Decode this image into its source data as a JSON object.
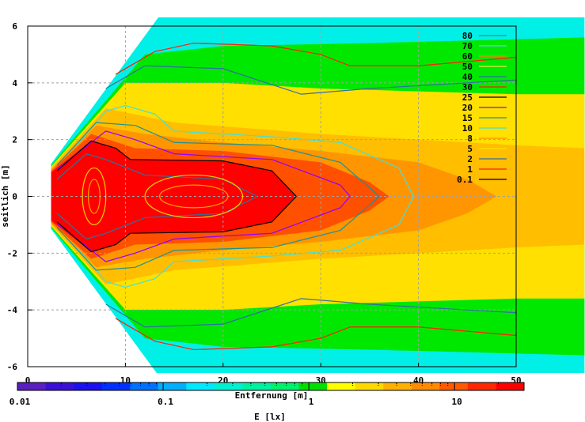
{
  "chart_data": {
    "type": "heatmap",
    "title": "",
    "xlabel": "Entfernung [m]",
    "ylabel": "seitlich [m]",
    "colorbar_label": "E [lx]",
    "xlim": [
      0,
      50
    ],
    "ylim": [
      -6,
      6
    ],
    "grid": true,
    "x_ticks": [
      "0",
      "10",
      "20",
      "30",
      "40",
      "50"
    ],
    "x_tick_values": [
      0,
      10,
      20,
      30,
      40,
      50
    ],
    "y_ticks": [
      "6",
      "4",
      "2",
      "0",
      "-2",
      "-4",
      "-6"
    ],
    "y_tick_values": [
      6,
      4,
      2,
      0,
      -2,
      -4,
      -6
    ],
    "colorbar": {
      "scale": "log",
      "range": [
        0.01,
        30
      ],
      "tick_labels": [
        "0.01",
        "0.1",
        "1",
        "10"
      ],
      "tick_values": [
        0.01,
        0.1,
        1,
        10
      ],
      "colors": [
        "#5a1fc0",
        "#3a10d8",
        "#1a10f0",
        "#0030ff",
        "#0070ff",
        "#00b0ff",
        "#00e8ff",
        "#00f0d0",
        "#00f0a0",
        "#00f070",
        "#00e000",
        "#ffff00",
        "#ffd800",
        "#ffb000",
        "#ff8c00",
        "#ff5a00",
        "#ff2800",
        "#ff0000"
      ]
    },
    "legend": {
      "placement": "top-right",
      "entries": [
        {
          "label": "80",
          "color": "#508080"
        },
        {
          "label": "70",
          "color": "#60d0d0"
        },
        {
          "label": "60",
          "color": "#ff8000"
        },
        {
          "label": "50",
          "color": "#f0e040"
        },
        {
          "label": "40",
          "color": "#3070a0"
        },
        {
          "label": "30",
          "color": "#ff2000"
        },
        {
          "label": "25",
          "color": "#000000"
        },
        {
          "label": "20",
          "color": "#9000ff"
        },
        {
          "label": "15",
          "color": "#209090"
        },
        {
          "label": "10",
          "color": "#40e0e0"
        },
        {
          "label": "8",
          "color": "#ff9000"
        },
        {
          "label": "5",
          "color": "#ffe000"
        },
        {
          "label": "2",
          "color": "#3070a0"
        },
        {
          "label": "1",
          "color": "#ff2000"
        },
        {
          "label": "0.1",
          "color": "#000000"
        }
      ]
    },
    "bands": [
      {
        "color": "#00f0e8",
        "profile": [
          [
            2.4,
            1.15
          ],
          [
            14,
            6.6
          ],
          [
            57,
            6.6
          ]
        ]
      },
      {
        "color": "#00e800",
        "profile": [
          [
            2.4,
            1.1
          ],
          [
            12,
            5.0
          ],
          [
            20,
            5.3
          ],
          [
            35,
            5.4
          ],
          [
            57,
            5.6
          ]
        ]
      },
      {
        "color": "#ffe000",
        "profile": [
          [
            2.4,
            1.05
          ],
          [
            10,
            4.0
          ],
          [
            20,
            4.0
          ],
          [
            30,
            3.8
          ],
          [
            40,
            3.7
          ],
          [
            50,
            3.6
          ],
          [
            57,
            3.6
          ]
        ]
      },
      {
        "color": "#ffbe00",
        "profile": [
          [
            2.4,
            1.0
          ],
          [
            8,
            3.1
          ],
          [
            15,
            2.6
          ],
          [
            30,
            2.2
          ],
          [
            50,
            1.8
          ],
          [
            57,
            1.7
          ]
        ]
      },
      {
        "color": "#ff9600",
        "profile": [
          [
            2.4,
            0.95
          ],
          [
            7,
            2.5
          ],
          [
            12,
            2.2
          ],
          [
            20,
            1.9
          ],
          [
            30,
            1.6
          ],
          [
            40,
            1.2
          ],
          [
            45,
            0.6
          ],
          [
            48,
            0
          ]
        ]
      },
      {
        "color": "#ff5000",
        "profile": [
          [
            2.4,
            0.9
          ],
          [
            6.5,
            2.2
          ],
          [
            11,
            1.7
          ],
          [
            20,
            1.6
          ],
          [
            30,
            1.2
          ],
          [
            35,
            0.5
          ],
          [
            37,
            0
          ]
        ]
      },
      {
        "color": "#ff0000",
        "profile": [
          [
            2.4,
            0.85
          ],
          [
            6.5,
            1.95
          ],
          [
            9,
            1.7
          ],
          [
            10.5,
            1.3
          ],
          [
            20,
            1.25
          ],
          [
            25,
            0.9
          ],
          [
            27.5,
            0
          ]
        ]
      }
    ],
    "contours": [
      {
        "level": "60",
        "color": "#ff2000",
        "profile": [
          [
            9,
            4.3
          ],
          [
            13,
            5.1
          ],
          [
            17,
            5.4
          ],
          [
            25,
            5.3
          ],
          [
            30,
            5.0
          ],
          [
            33,
            4.6
          ],
          [
            40,
            4.6
          ],
          [
            50,
            4.9
          ]
        ]
      },
      {
        "level": "40",
        "color": "#3070a0",
        "profile": [
          [
            8,
            3.8
          ],
          [
            12,
            4.6
          ],
          [
            20,
            4.5
          ],
          [
            28,
            3.6
          ],
          [
            35,
            3.8
          ],
          [
            45,
            4.0
          ],
          [
            50,
            4.1
          ]
        ]
      },
      {
        "level": "10",
        "color": "#40e0e0",
        "profile": [
          [
            5,
            1.8
          ],
          [
            8,
            3.0
          ],
          [
            10,
            3.2
          ],
          [
            13,
            2.9
          ],
          [
            15,
            2.3
          ],
          [
            25,
            2.1
          ],
          [
            32,
            1.9
          ],
          [
            38,
            1.0
          ],
          [
            39.5,
            0
          ]
        ]
      },
      {
        "level": "15",
        "color": "#209090",
        "profile": [
          [
            3,
            1.1
          ],
          [
            7,
            2.6
          ],
          [
            11,
            2.5
          ],
          [
            15,
            1.9
          ],
          [
            25,
            1.8
          ],
          [
            32,
            1.2
          ],
          [
            36,
            0
          ]
        ]
      },
      {
        "level": "20",
        "color": "#9000ff",
        "profile": [
          [
            3,
            0.95
          ],
          [
            8,
            2.3
          ],
          [
            11,
            2.0
          ],
          [
            15,
            1.5
          ],
          [
            25,
            1.3
          ],
          [
            32,
            0.4
          ],
          [
            33,
            0
          ]
        ]
      },
      {
        "level": "25",
        "color": "#000000",
        "profile": [
          [
            3,
            0.9
          ],
          [
            6.5,
            1.95
          ],
          [
            9,
            1.7
          ],
          [
            10.5,
            1.3
          ],
          [
            20,
            1.25
          ],
          [
            25,
            0.9
          ],
          [
            27.5,
            0
          ]
        ]
      },
      {
        "level": "50",
        "color": "#3070a0",
        "profile": [
          [
            3,
            0.6
          ],
          [
            6,
            1.5
          ],
          [
            8,
            1.3
          ],
          [
            12,
            0.75
          ],
          [
            20,
            0.6
          ],
          [
            23.5,
            0
          ]
        ]
      }
    ],
    "loops": [
      {
        "level": "50",
        "color": "#f0d000",
        "cx": 6.8,
        "cy": 0,
        "rx": 1.2,
        "ry": 1.0
      },
      {
        "level": "50",
        "color": "#f0d000",
        "cx": 17,
        "cy": 0,
        "rx": 5,
        "ry": 0.75
      },
      {
        "level": "60",
        "color": "#ffa000",
        "cx": 17,
        "cy": 0,
        "rx": 3.5,
        "ry": 0.4
      },
      {
        "level": "60",
        "color": "#ffa000",
        "cx": 6.8,
        "cy": 0,
        "rx": 0.6,
        "ry": 0.6
      }
    ]
  }
}
